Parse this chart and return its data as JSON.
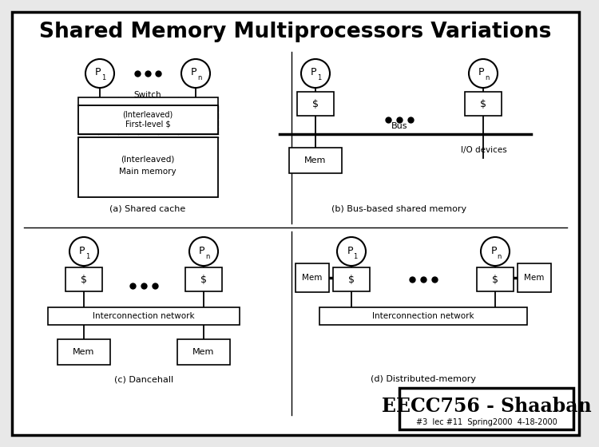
{
  "title": "Shared Memory Multiprocessors Variations",
  "title_fontsize": 19,
  "title_fontweight": "bold",
  "bg_color": "#e8e8e8",
  "footer_text": "EECC756 - Shaaban",
  "footer_subtext": "#3  lec #11  Spring2000  4-18-2000",
  "sub_labels": [
    "(a) Shared cache",
    "(b) Bus-based shared memory",
    "(c) Dancehall",
    "(d) Distributed-memory"
  ]
}
